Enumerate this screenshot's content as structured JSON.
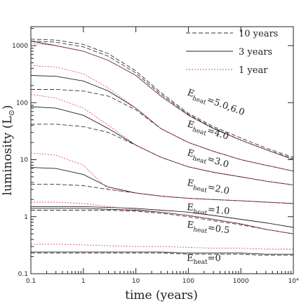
{
  "chart_data": {
    "type": "line",
    "xlabel": "time (years)",
    "ylabel": {
      "text": "luminosity (L",
      "sub": "⊙",
      "close": ")"
    },
    "log_x": true,
    "log_y": true,
    "xlim": [
      0.1,
      10000
    ],
    "ylim": [
      0.1,
      2150
    ],
    "xticks": [
      0.1,
      1,
      10,
      100,
      1000,
      {
        "value": 10000,
        "label": "10⁴"
      }
    ],
    "yticks": [
      0.1,
      1,
      10,
      100,
      1000
    ],
    "x": [
      0.1,
      0.3,
      1,
      3,
      10,
      30,
      100,
      300,
      1000,
      3000,
      10000
    ],
    "series": [
      {
        "name": "10 years",
        "color": "#333333",
        "dash": "6 3",
        "curves": [
          [
            0.23,
            0.23,
            0.23,
            0.23,
            0.23,
            0.23,
            0.22,
            0.22,
            0.22,
            0.21,
            0.21
          ],
          [
            1.3,
            1.3,
            1.3,
            1.3,
            1.25,
            1.15,
            1.0,
            0.85,
            0.72,
            0.6,
            0.5
          ],
          [
            3.7,
            3.7,
            3.5,
            3,
            2.6,
            2.3,
            2.1,
            2,
            1.9,
            1.8,
            1.7
          ],
          [
            42,
            42,
            38,
            30,
            18,
            11,
            7.5,
            6,
            5,
            4.2,
            3.6
          ],
          [
            170,
            170,
            160,
            130,
            75,
            35,
            20,
            14,
            10,
            8,
            6.3
          ],
          [
            1200,
            1150,
            950,
            650,
            330,
            140,
            62,
            36,
            22,
            15,
            10.5
          ],
          [
            1300,
            1250,
            1050,
            720,
            360,
            150,
            65,
            38,
            24,
            16,
            11
          ]
        ]
      },
      {
        "name": "3 years",
        "color": "#222222",
        "dash": "",
        "curves": [
          [
            0.24,
            0.24,
            0.24,
            0.24,
            0.24,
            0.24,
            0.23,
            0.23,
            0.23,
            0.22,
            0.22
          ],
          [
            1.4,
            1.4,
            1.4,
            1.35,
            1.3,
            1.2,
            1.05,
            0.9,
            0.75,
            0.6,
            0.5
          ],
          [
            1.5,
            1.5,
            1.5,
            1.45,
            1.4,
            1.3,
            1.2,
            1.05,
            0.9,
            0.78,
            0.65
          ],
          [
            7.3,
            7,
            5.5,
            3.3,
            2.6,
            2.3,
            2.1,
            2,
            1.9,
            1.8,
            1.7
          ],
          [
            85,
            80,
            60,
            35,
            18,
            11,
            7.5,
            6,
            5,
            4.2,
            3.6
          ],
          [
            300,
            290,
            240,
            160,
            80,
            35,
            20,
            14,
            10,
            8,
            6.3
          ],
          [
            1200,
            1000,
            800,
            550,
            300,
            130,
            60,
            35,
            22,
            15,
            10
          ]
        ]
      },
      {
        "name": "1 year",
        "color": "#e05060",
        "dash": "2 2",
        "curves": [
          [
            0.33,
            0.33,
            0.32,
            0.31,
            0.3,
            0.3,
            0.29,
            0.28,
            0.28,
            0.27,
            0.27
          ],
          [
            1.8,
            1.8,
            1.7,
            1.5,
            1.35,
            1.2,
            1.05,
            0.9,
            0.75,
            0.6,
            0.5
          ],
          [
            13,
            12,
            8,
            3,
            2.6,
            2.3,
            2.1,
            2,
            1.9,
            1.8,
            1.7
          ],
          [
            140,
            120,
            80,
            40,
            18,
            11,
            7.5,
            6,
            5,
            4.2,
            3.6
          ],
          [
            450,
            420,
            320,
            180,
            80,
            35,
            20,
            14,
            10,
            8,
            6.3
          ],
          [
            1100,
            1000,
            800,
            550,
            300,
            130,
            60,
            35,
            22,
            15,
            10
          ]
        ]
      }
    ],
    "annotations": [
      {
        "base": "E",
        "sub": "heat",
        "text": "=5.0,6.0"
      },
      {
        "base": "E",
        "sub": "heat",
        "text": "=4.0"
      },
      {
        "base": "E",
        "sub": "heat",
        "text": "=3.0"
      },
      {
        "base": "E",
        "sub": "heat",
        "text": "=2.0"
      },
      {
        "base": "E",
        "sub": "heat",
        "text": "=1.0"
      },
      {
        "base": "E",
        "sub": "heat",
        "text": "=0.5"
      },
      {
        "base": "E",
        "sub": "heat",
        "text": "=0"
      }
    ]
  }
}
